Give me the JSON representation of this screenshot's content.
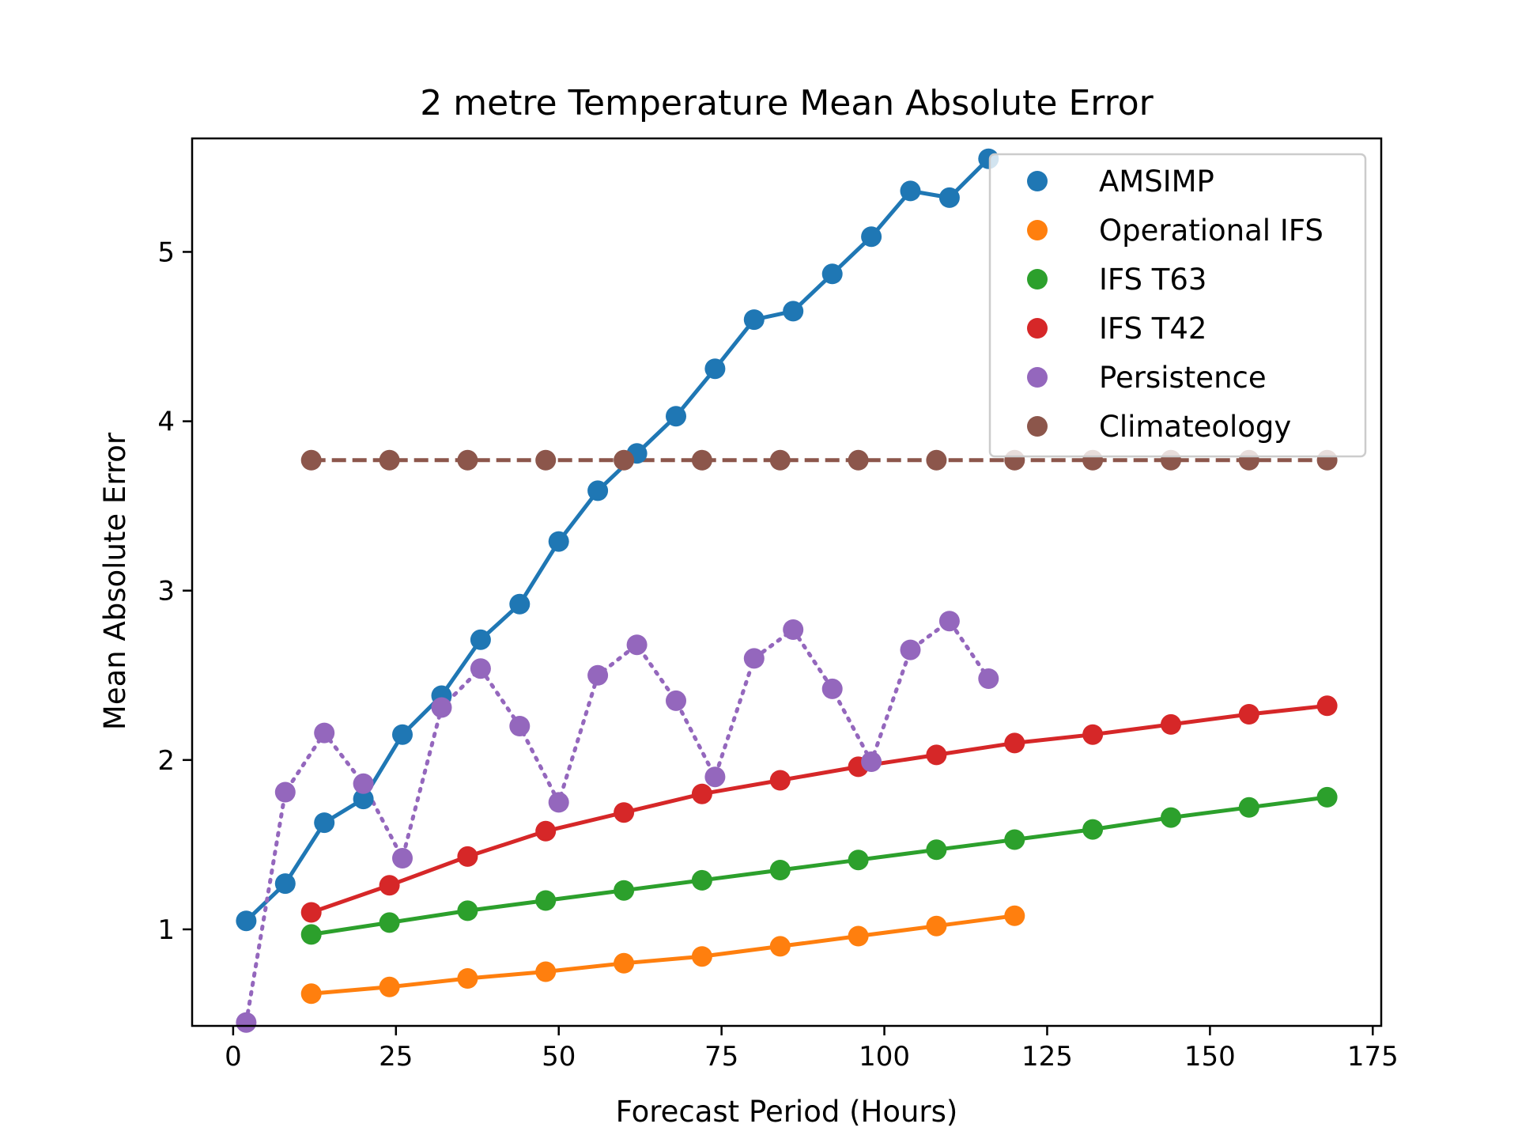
{
  "chart_data": {
    "type": "line",
    "title": "2 metre Temperature Mean Absolute Error",
    "xlabel": "Forecast Period (Hours)",
    "ylabel": "Mean Absolute Error",
    "xlim": [
      -6.3,
      176.3
    ],
    "ylim": [
      0.43,
      5.67
    ],
    "xticks": [
      0,
      25,
      50,
      75,
      100,
      125,
      150,
      175
    ],
    "yticks": [
      1,
      2,
      3,
      4,
      5
    ],
    "grid": false,
    "legend_position": "top-right",
    "series": [
      {
        "name": "AMSIMP",
        "color": "#1f77b4",
        "linestyle": "solid",
        "x": [
          2,
          8,
          14,
          20,
          26,
          32,
          38,
          44,
          50,
          56,
          62,
          68,
          74,
          80,
          86,
          92,
          98,
          104,
          110,
          116
        ],
        "y": [
          1.05,
          1.27,
          1.63,
          1.77,
          2.15,
          2.38,
          2.71,
          2.92,
          3.29,
          3.59,
          3.81,
          4.03,
          4.31,
          4.6,
          4.65,
          4.87,
          5.09,
          5.36,
          5.32,
          5.55
        ]
      },
      {
        "name": "Operational IFS",
        "color": "#ff7f0e",
        "linestyle": "solid",
        "x": [
          12,
          24,
          36,
          48,
          60,
          72,
          84,
          96,
          108,
          120
        ],
        "y": [
          0.62,
          0.66,
          0.71,
          0.75,
          0.8,
          0.84,
          0.9,
          0.96,
          1.02,
          1.08
        ]
      },
      {
        "name": "IFS T63",
        "color": "#2ca02c",
        "linestyle": "solid",
        "x": [
          12,
          24,
          36,
          48,
          60,
          72,
          84,
          96,
          108,
          120,
          132,
          144,
          156,
          168
        ],
        "y": [
          0.97,
          1.04,
          1.11,
          1.17,
          1.23,
          1.29,
          1.35,
          1.41,
          1.47,
          1.53,
          1.59,
          1.66,
          1.72,
          1.78
        ]
      },
      {
        "name": "IFS T42",
        "color": "#d62728",
        "linestyle": "solid",
        "x": [
          12,
          24,
          36,
          48,
          60,
          72,
          84,
          96,
          108,
          120,
          132,
          144,
          156,
          168
        ],
        "y": [
          1.1,
          1.26,
          1.43,
          1.58,
          1.69,
          1.8,
          1.88,
          1.96,
          2.03,
          2.1,
          2.15,
          2.21,
          2.27,
          2.32
        ]
      },
      {
        "name": "Persistence",
        "color": "#9467bd",
        "linestyle": "dotted",
        "x": [
          2,
          8,
          14,
          20,
          26,
          32,
          38,
          44,
          50,
          56,
          62,
          68,
          74,
          80,
          86,
          92,
          98,
          104,
          110,
          116
        ],
        "y": [
          0.45,
          1.81,
          2.16,
          1.86,
          1.42,
          2.31,
          2.54,
          2.2,
          1.75,
          2.5,
          2.68,
          2.35,
          1.9,
          2.6,
          2.77,
          2.42,
          1.99,
          2.65,
          2.82,
          2.48
        ]
      },
      {
        "name": "Climateology",
        "color": "#8c564b",
        "linestyle": "dashed",
        "x": [
          12,
          24,
          36,
          48,
          60,
          72,
          84,
          96,
          108,
          120,
          132,
          144,
          156,
          168
        ],
        "y": [
          3.77,
          3.77,
          3.77,
          3.77,
          3.77,
          3.77,
          3.77,
          3.77,
          3.77,
          3.77,
          3.77,
          3.77,
          3.77,
          3.77
        ]
      }
    ]
  }
}
